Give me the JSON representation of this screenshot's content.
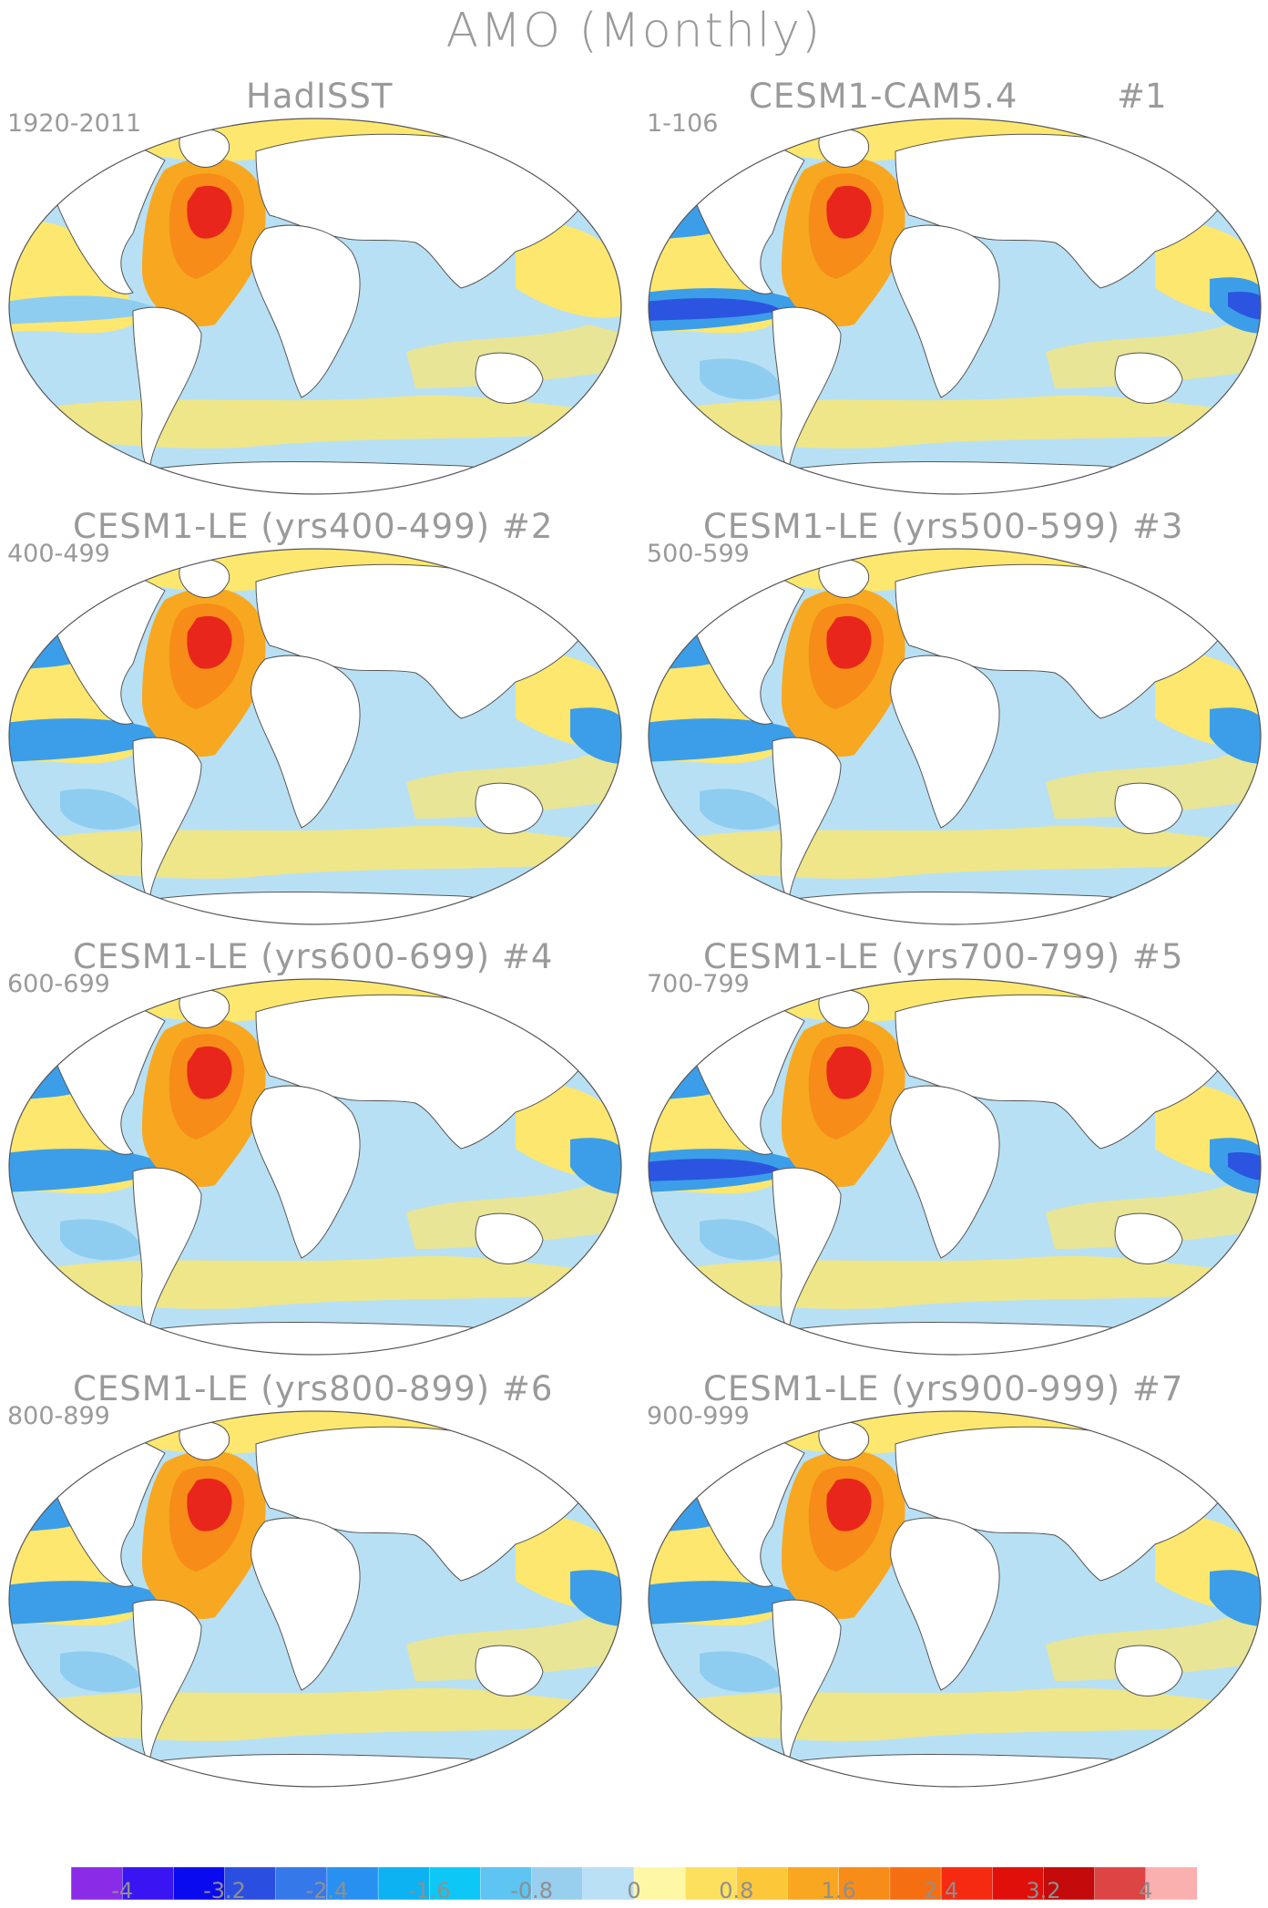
{
  "title": "AMO (Monthly)",
  "colors": {
    "continent": "#ffffff",
    "coast": "#555555",
    "warm_core": "#e8261c",
    "warm_mid": "#f7a820",
    "warm_low": "#fde76e",
    "cool_low": "#b8e0f4",
    "cool_mid": "#8fcdf0",
    "cool_high": "#3c9ee8",
    "cool_core": "#2b55e0"
  },
  "panels": [
    {
      "title": "HadISST",
      "number": "",
      "years": "1920-2011",
      "pattern": "obs"
    },
    {
      "title": "CESM1-CAM5.4",
      "number": "#1",
      "years": "1-106",
      "pattern": "pac_strong"
    },
    {
      "title": "CESM1-LE (yrs400-499)",
      "number": "#2",
      "years": "400-499",
      "pattern": "mid"
    },
    {
      "title": "CESM1-LE (yrs500-599)",
      "number": "#3",
      "years": "500-599",
      "pattern": "mid"
    },
    {
      "title": "CESM1-LE (yrs600-699)",
      "number": "#4",
      "years": "600-699",
      "pattern": "mid"
    },
    {
      "title": "CESM1-LE (yrs700-799)",
      "number": "#5",
      "years": "700-799",
      "pattern": "pac_strong"
    },
    {
      "title": "CESM1-LE (yrs800-899)",
      "number": "#6",
      "years": "800-899",
      "pattern": "mid"
    },
    {
      "title": "CESM1-LE (yrs900-999)",
      "number": "#7",
      "years": "900-999",
      "pattern": "mid"
    }
  ],
  "colorbar": {
    "labels": [
      "-4",
      "-3.2",
      "-2.4",
      "-1.6",
      "-0.8",
      "0",
      "0.8",
      "1.6",
      "2.4",
      "3.2",
      "4"
    ],
    "colors": [
      "#8a2be8",
      "#3a14f2",
      "#0a0af0",
      "#2a4fe0",
      "#3478ea",
      "#2790f0",
      "#0cb2f2",
      "#0dc8f7",
      "#5ec4f2",
      "#98cfee",
      "#b9e0f4",
      "#fdf7a6",
      "#fde15e",
      "#fcc83a",
      "#f9a620",
      "#f88c18",
      "#f66e12",
      "#f52a10",
      "#e00f0a",
      "#c40a0a",
      "#dd4444",
      "#fbb0b0"
    ]
  }
}
